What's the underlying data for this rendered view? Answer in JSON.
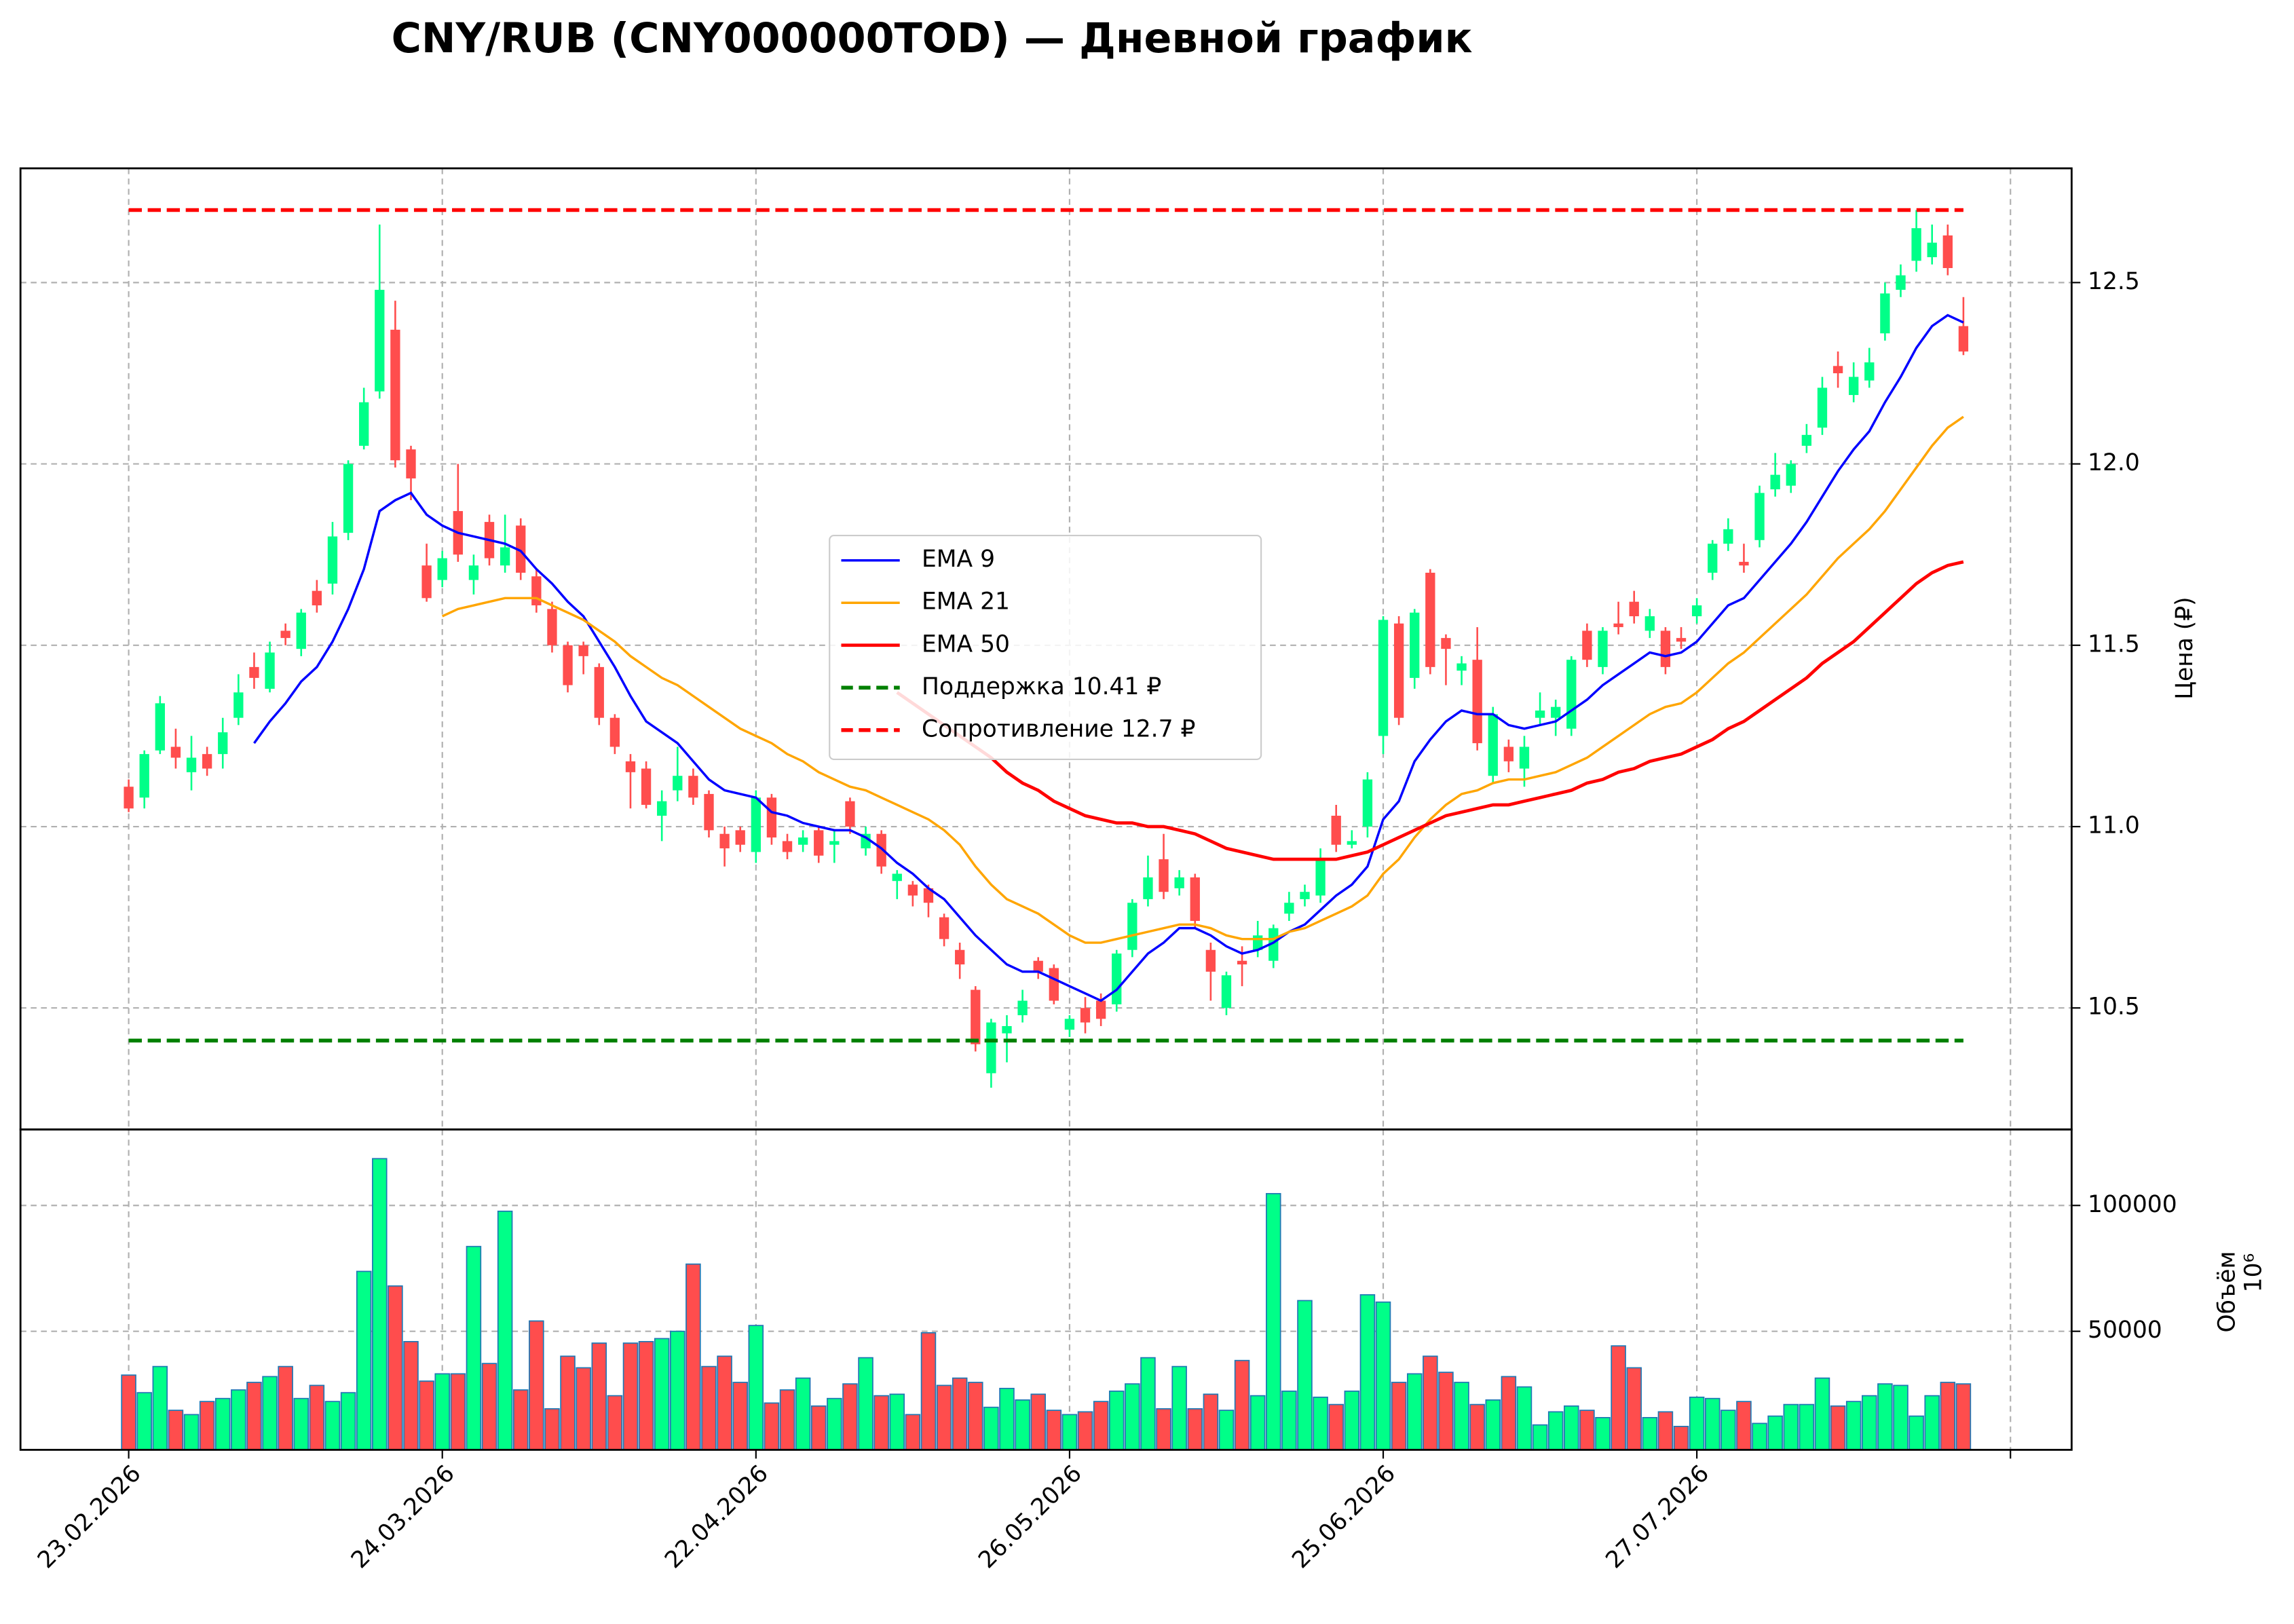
{
  "chart_data": {
    "type": "candlestick",
    "title": "CNY/RUB (CNY000000TOD) — Дневной график",
    "ylabel": "Цена (₽)",
    "up_color": "#00ff88",
    "down_color": "#ff4d4d",
    "grid": true,
    "xlim": [
      -6.9,
      123.9
    ],
    "xticks": [
      {
        "value": 0,
        "label": "23.02.2026"
      },
      {
        "value": 20,
        "label": "24.03.2026"
      },
      {
        "value": 40,
        "label": "22.04.2026"
      },
      {
        "value": 60,
        "label": "26.05.2026"
      },
      {
        "value": 80,
        "label": "25.06.2026"
      },
      {
        "value": 100,
        "label": "27.07.2026"
      },
      {
        "value": 120
      }
    ],
    "ylim": [
      10.165,
      12.815
    ],
    "yticks": [
      10.5,
      {
        "value": 11,
        "label": "11.0"
      },
      11.5,
      {
        "value": 12,
        "label": "12.0"
      },
      12.5
    ],
    "open": [
      11.11,
      11.08,
      11.21,
      11.22,
      11.15,
      11.2,
      11.2,
      11.3,
      11.44,
      11.38,
      11.54,
      11.49,
      11.65,
      11.67,
      11.81,
      12.05,
      12.2,
      12.37,
      12.04,
      11.72,
      11.68,
      11.87,
      11.68,
      11.84,
      11.72,
      11.83,
      11.69,
      11.6,
      11.5,
      11.5,
      11.44,
      11.3,
      11.18,
      11.16,
      11.03,
      11.1,
      11.14,
      11.09,
      10.98,
      10.99,
      10.93,
      11.08,
      10.96,
      10.95,
      10.99,
      10.95,
      11.07,
      10.94,
      10.98,
      10.85,
      10.84,
      10.83,
      10.75,
      10.66,
      10.55,
      10.32,
      10.43,
      10.48,
      10.63,
      10.61,
      10.44,
      10.5,
      10.52,
      10.51,
      10.66,
      10.8,
      10.91,
      10.83,
      10.86,
      10.66,
      10.5,
      10.63,
      10.66,
      10.63,
      10.76,
      10.8,
      10.81,
      11.03,
      10.95,
      11.0,
      11.25,
      11.56,
      11.41,
      11.7,
      11.52,
      11.43,
      11.46,
      11.14,
      11.22,
      11.16,
      11.3,
      11.3,
      11.27,
      11.54,
      11.44,
      11.56,
      11.62,
      11.54,
      11.54,
      11.52,
      11.58,
      11.7,
      11.78,
      11.73,
      11.79,
      11.93,
      11.94,
      12.05,
      12.1,
      12.27,
      12.19,
      12.23,
      12.36,
      12.48,
      12.56,
      12.57,
      12.63,
      12.38
    ],
    "high": [
      11.13,
      11.21,
      11.36,
      11.27,
      11.25,
      11.22,
      11.3,
      11.42,
      11.48,
      11.51,
      11.56,
      11.6,
      11.68,
      11.84,
      12.01,
      12.21,
      12.66,
      12.45,
      12.05,
      11.78,
      11.76,
      12.0,
      11.75,
      11.86,
      11.86,
      11.85,
      11.71,
      11.62,
      11.51,
      11.51,
      11.45,
      11.31,
      11.2,
      11.18,
      11.1,
      11.22,
      11.16,
      11.1,
      11.0,
      11.0,
      11.1,
      11.09,
      10.98,
      10.99,
      11.0,
      10.99,
      11.08,
      11.0,
      10.99,
      10.88,
      10.85,
      10.84,
      10.76,
      10.68,
      10.56,
      10.47,
      10.48,
      10.55,
      10.64,
      10.62,
      10.48,
      10.53,
      10.54,
      10.66,
      10.8,
      10.92,
      10.98,
      10.88,
      10.87,
      10.68,
      10.6,
      10.67,
      10.74,
      10.73,
      10.82,
      10.84,
      10.94,
      11.06,
      10.99,
      11.15,
      11.58,
      11.58,
      11.6,
      11.71,
      11.53,
      11.47,
      11.55,
      11.33,
      11.24,
      11.25,
      11.37,
      11.35,
      11.47,
      11.56,
      11.55,
      11.62,
      11.65,
      11.6,
      11.55,
      11.55,
      11.63,
      11.79,
      11.85,
      11.78,
      11.94,
      12.03,
      12.01,
      12.11,
      12.24,
      12.31,
      12.28,
      12.32,
      12.5,
      12.55,
      12.7,
      12.66,
      12.66,
      12.46
    ],
    "low": [
      11.04,
      11.05,
      11.2,
      11.16,
      11.1,
      11.14,
      11.16,
      11.28,
      11.38,
      11.37,
      11.5,
      11.47,
      11.59,
      11.64,
      11.79,
      12.04,
      12.18,
      11.99,
      11.9,
      11.62,
      11.66,
      11.73,
      11.64,
      11.72,
      11.7,
      11.68,
      11.59,
      11.48,
      11.37,
      11.42,
      11.28,
      11.2,
      11.05,
      11.05,
      10.96,
      11.07,
      11.06,
      10.97,
      10.89,
      10.93,
      10.9,
      10.95,
      10.91,
      10.93,
      10.9,
      10.9,
      10.98,
      10.92,
      10.87,
      10.8,
      10.78,
      10.75,
      10.67,
      10.58,
      10.38,
      10.28,
      10.35,
      10.46,
      10.58,
      10.51,
      10.42,
      10.43,
      10.45,
      10.49,
      10.64,
      10.78,
      10.8,
      10.81,
      10.72,
      10.52,
      10.48,
      10.56,
      10.64,
      10.61,
      10.74,
      10.78,
      10.79,
      10.93,
      10.94,
      10.97,
      11.2,
      11.28,
      11.38,
      11.42,
      11.39,
      11.39,
      11.21,
      11.12,
      11.15,
      11.11,
      11.28,
      11.25,
      11.25,
      11.44,
      11.42,
      11.53,
      11.56,
      11.52,
      11.42,
      11.49,
      11.56,
      11.68,
      11.76,
      11.7,
      11.77,
      11.91,
      11.92,
      12.03,
      12.08,
      12.21,
      12.17,
      12.21,
      12.34,
      12.46,
      12.53,
      12.55,
      12.52,
      12.3
    ],
    "close": [
      11.05,
      11.2,
      11.34,
      11.19,
      11.19,
      11.16,
      11.26,
      11.37,
      11.41,
      11.48,
      11.52,
      11.59,
      11.61,
      11.8,
      12.0,
      12.17,
      12.48,
      12.01,
      11.96,
      11.63,
      11.74,
      11.75,
      11.72,
      11.74,
      11.77,
      11.7,
      11.61,
      11.5,
      11.39,
      11.47,
      11.3,
      11.22,
      11.15,
      11.06,
      11.07,
      11.14,
      11.08,
      10.99,
      10.94,
      10.95,
      11.08,
      10.97,
      10.93,
      10.97,
      10.92,
      10.96,
      11.0,
      10.98,
      10.89,
      10.87,
      10.81,
      10.79,
      10.69,
      10.62,
      10.4,
      10.46,
      10.45,
      10.52,
      10.6,
      10.52,
      10.47,
      10.46,
      10.47,
      10.65,
      10.79,
      10.86,
      10.82,
      10.86,
      10.74,
      10.6,
      10.59,
      10.62,
      10.7,
      10.72,
      10.79,
      10.82,
      10.91,
      10.95,
      10.96,
      11.13,
      11.57,
      11.3,
      11.59,
      11.44,
      11.49,
      11.45,
      11.23,
      11.31,
      11.18,
      11.22,
      11.32,
      11.33,
      11.46,
      11.46,
      11.54,
      11.55,
      11.58,
      11.58,
      11.44,
      11.51,
      11.61,
      11.78,
      11.82,
      11.72,
      11.92,
      11.97,
      12.0,
      12.08,
      12.21,
      12.25,
      12.24,
      12.28,
      12.47,
      12.52,
      12.65,
      12.61,
      12.54,
      12.31
    ],
    "lines": [
      {
        "name": "EMA 9",
        "color": "#0000ff",
        "values": [
          null,
          null,
          null,
          null,
          null,
          null,
          null,
          null,
          11.23,
          11.29,
          11.34,
          11.4,
          11.44,
          11.51,
          11.6,
          11.71,
          11.87,
          11.9,
          11.92,
          11.86,
          11.83,
          11.81,
          11.8,
          11.79,
          11.78,
          11.76,
          11.71,
          11.67,
          11.62,
          11.58,
          11.51,
          11.44,
          11.36,
          11.29,
          11.26,
          11.23,
          11.18,
          11.13,
          11.1,
          11.09,
          11.08,
          11.04,
          11.03,
          11.01,
          11.0,
          10.99,
          10.99,
          10.97,
          10.94,
          10.9,
          10.87,
          10.83,
          10.8,
          10.75,
          10.7,
          10.66,
          10.62,
          10.6,
          10.6,
          10.58,
          10.56,
          10.54,
          10.52,
          10.55,
          10.6,
          10.65,
          10.68,
          10.72,
          10.72,
          10.7,
          10.67,
          10.65,
          10.66,
          10.68,
          10.71,
          10.73,
          10.77,
          10.81,
          10.84,
          10.89,
          11.02,
          11.07,
          11.18,
          11.24,
          11.29,
          11.32,
          11.31,
          11.31,
          11.28,
          11.27,
          11.28,
          11.29,
          11.32,
          11.35,
          11.39,
          11.42,
          11.45,
          11.48,
          11.47,
          11.48,
          11.51,
          11.56,
          11.61,
          11.63,
          11.68,
          11.73,
          11.78,
          11.84,
          11.91,
          11.98,
          12.04,
          12.09,
          12.17,
          12.24,
          12.32,
          12.38,
          12.41,
          12.39
        ]
      },
      {
        "name": "EMA 21",
        "color": "#ffa500",
        "values": [
          null,
          null,
          null,
          null,
          null,
          null,
          null,
          null,
          null,
          null,
          null,
          null,
          null,
          null,
          null,
          null,
          null,
          null,
          null,
          null,
          11.58,
          11.6,
          11.61,
          11.62,
          11.63,
          11.63,
          11.63,
          11.61,
          11.59,
          11.57,
          11.54,
          11.51,
          11.47,
          11.44,
          11.41,
          11.39,
          11.36,
          11.33,
          11.3,
          11.27,
          11.25,
          11.23,
          11.2,
          11.18,
          11.15,
          11.13,
          11.11,
          11.1,
          11.08,
          11.06,
          11.04,
          11.02,
          10.99,
          10.95,
          10.89,
          10.84,
          10.8,
          10.78,
          10.76,
          10.73,
          10.7,
          10.68,
          10.68,
          10.69,
          10.7,
          10.71,
          10.72,
          10.73,
          10.73,
          10.72,
          10.7,
          10.69,
          10.69,
          10.69,
          10.71,
          10.72,
          10.74,
          10.76,
          10.78,
          10.81,
          10.87,
          10.91,
          10.97,
          11.02,
          11.06,
          11.09,
          11.1,
          11.12,
          11.13,
          11.13,
          11.14,
          11.15,
          11.17,
          11.19,
          11.22,
          11.25,
          11.28,
          11.31,
          11.33,
          11.34,
          11.37,
          11.41,
          11.45,
          11.48,
          11.52,
          11.56,
          11.6,
          11.64,
          11.69,
          11.74,
          11.78,
          11.82,
          11.87,
          11.93,
          11.99,
          12.05,
          12.1,
          12.13
        ]
      },
      {
        "name": "EMA 50",
        "color": "#ff0000",
        "values": [
          null,
          null,
          null,
          null,
          null,
          null,
          null,
          null,
          null,
          null,
          null,
          null,
          null,
          null,
          null,
          null,
          null,
          null,
          null,
          null,
          null,
          null,
          null,
          null,
          null,
          null,
          null,
          null,
          null,
          null,
          null,
          null,
          null,
          null,
          null,
          null,
          null,
          null,
          null,
          null,
          null,
          null,
          null,
          null,
          null,
          null,
          null,
          null,
          null,
          11.37,
          11.34,
          11.31,
          11.28,
          11.25,
          11.22,
          11.19,
          11.15,
          11.12,
          11.1,
          11.07,
          11.05,
          11.03,
          11.02,
          11.01,
          11.01,
          11.0,
          11.0,
          10.99,
          10.98,
          10.96,
          10.94,
          10.93,
          10.92,
          10.91,
          10.91,
          10.91,
          10.91,
          10.91,
          10.92,
          10.93,
          10.95,
          10.97,
          10.99,
          11.01,
          11.03,
          11.04,
          11.05,
          11.06,
          11.06,
          11.07,
          11.08,
          11.09,
          11.1,
          11.12,
          11.13,
          11.15,
          11.16,
          11.18,
          11.19,
          11.2,
          11.22,
          11.24,
          11.27,
          11.29,
          11.32,
          11.35,
          11.38,
          11.41,
          11.45,
          11.48,
          11.51,
          11.55,
          11.59,
          11.63,
          11.67,
          11.7,
          11.72,
          11.73
        ]
      }
    ],
    "hlines": [
      {
        "name": "Поддержка 10.41 ₽",
        "color": "#008000",
        "value": 10.41
      },
      {
        "name": "Сопротивление 12.7 ₽",
        "color": "#ff0000",
        "value": 12.7
      }
    ],
    "volume": {
      "ylabel": "Объём",
      "offset_label": "10⁶",
      "ylim": [
        2900,
        130200
      ],
      "yticks": [
        50000,
        100000
      ],
      "edge_color": "#1f77b4",
      "values": [
        32600,
        25600,
        36000,
        18600,
        16900,
        22100,
        23300,
        26700,
        29700,
        32000,
        36000,
        23300,
        28500,
        22100,
        25600,
        73800,
        118600,
        68000,
        45900,
        30200,
        33100,
        33100,
        83700,
        37200,
        97700,
        26700,
        54100,
        19200,
        40100,
        35500,
        45300,
        24400,
        45300,
        45900,
        47100,
        50000,
        76700,
        36000,
        40100,
        29700,
        52300,
        21500,
        26700,
        31400,
        20300,
        23300,
        29100,
        39500,
        24400,
        25000,
        16900,
        49400,
        28500,
        31400,
        29700,
        19800,
        27300,
        22700,
        25000,
        18600,
        16900,
        18000,
        22100,
        26200,
        29100,
        39500,
        19200,
        36000,
        19200,
        25000,
        18600,
        38400,
        24400,
        104700,
        26200,
        62200,
        23800,
        20900,
        26200,
        64500,
        61600,
        29700,
        33100,
        40100,
        33700,
        29700,
        20900,
        22700,
        32000,
        27900,
        12800,
        18000,
        20300,
        18600,
        15700,
        44200,
        35500,
        15700,
        18000,
        12200,
        23800,
        23300,
        18600,
        22100,
        13400,
        16300,
        20900,
        20900,
        31400,
        20300,
        22100,
        24400,
        29100,
        28500,
        16300,
        24400,
        29700,
        29100
      ]
    }
  }
}
